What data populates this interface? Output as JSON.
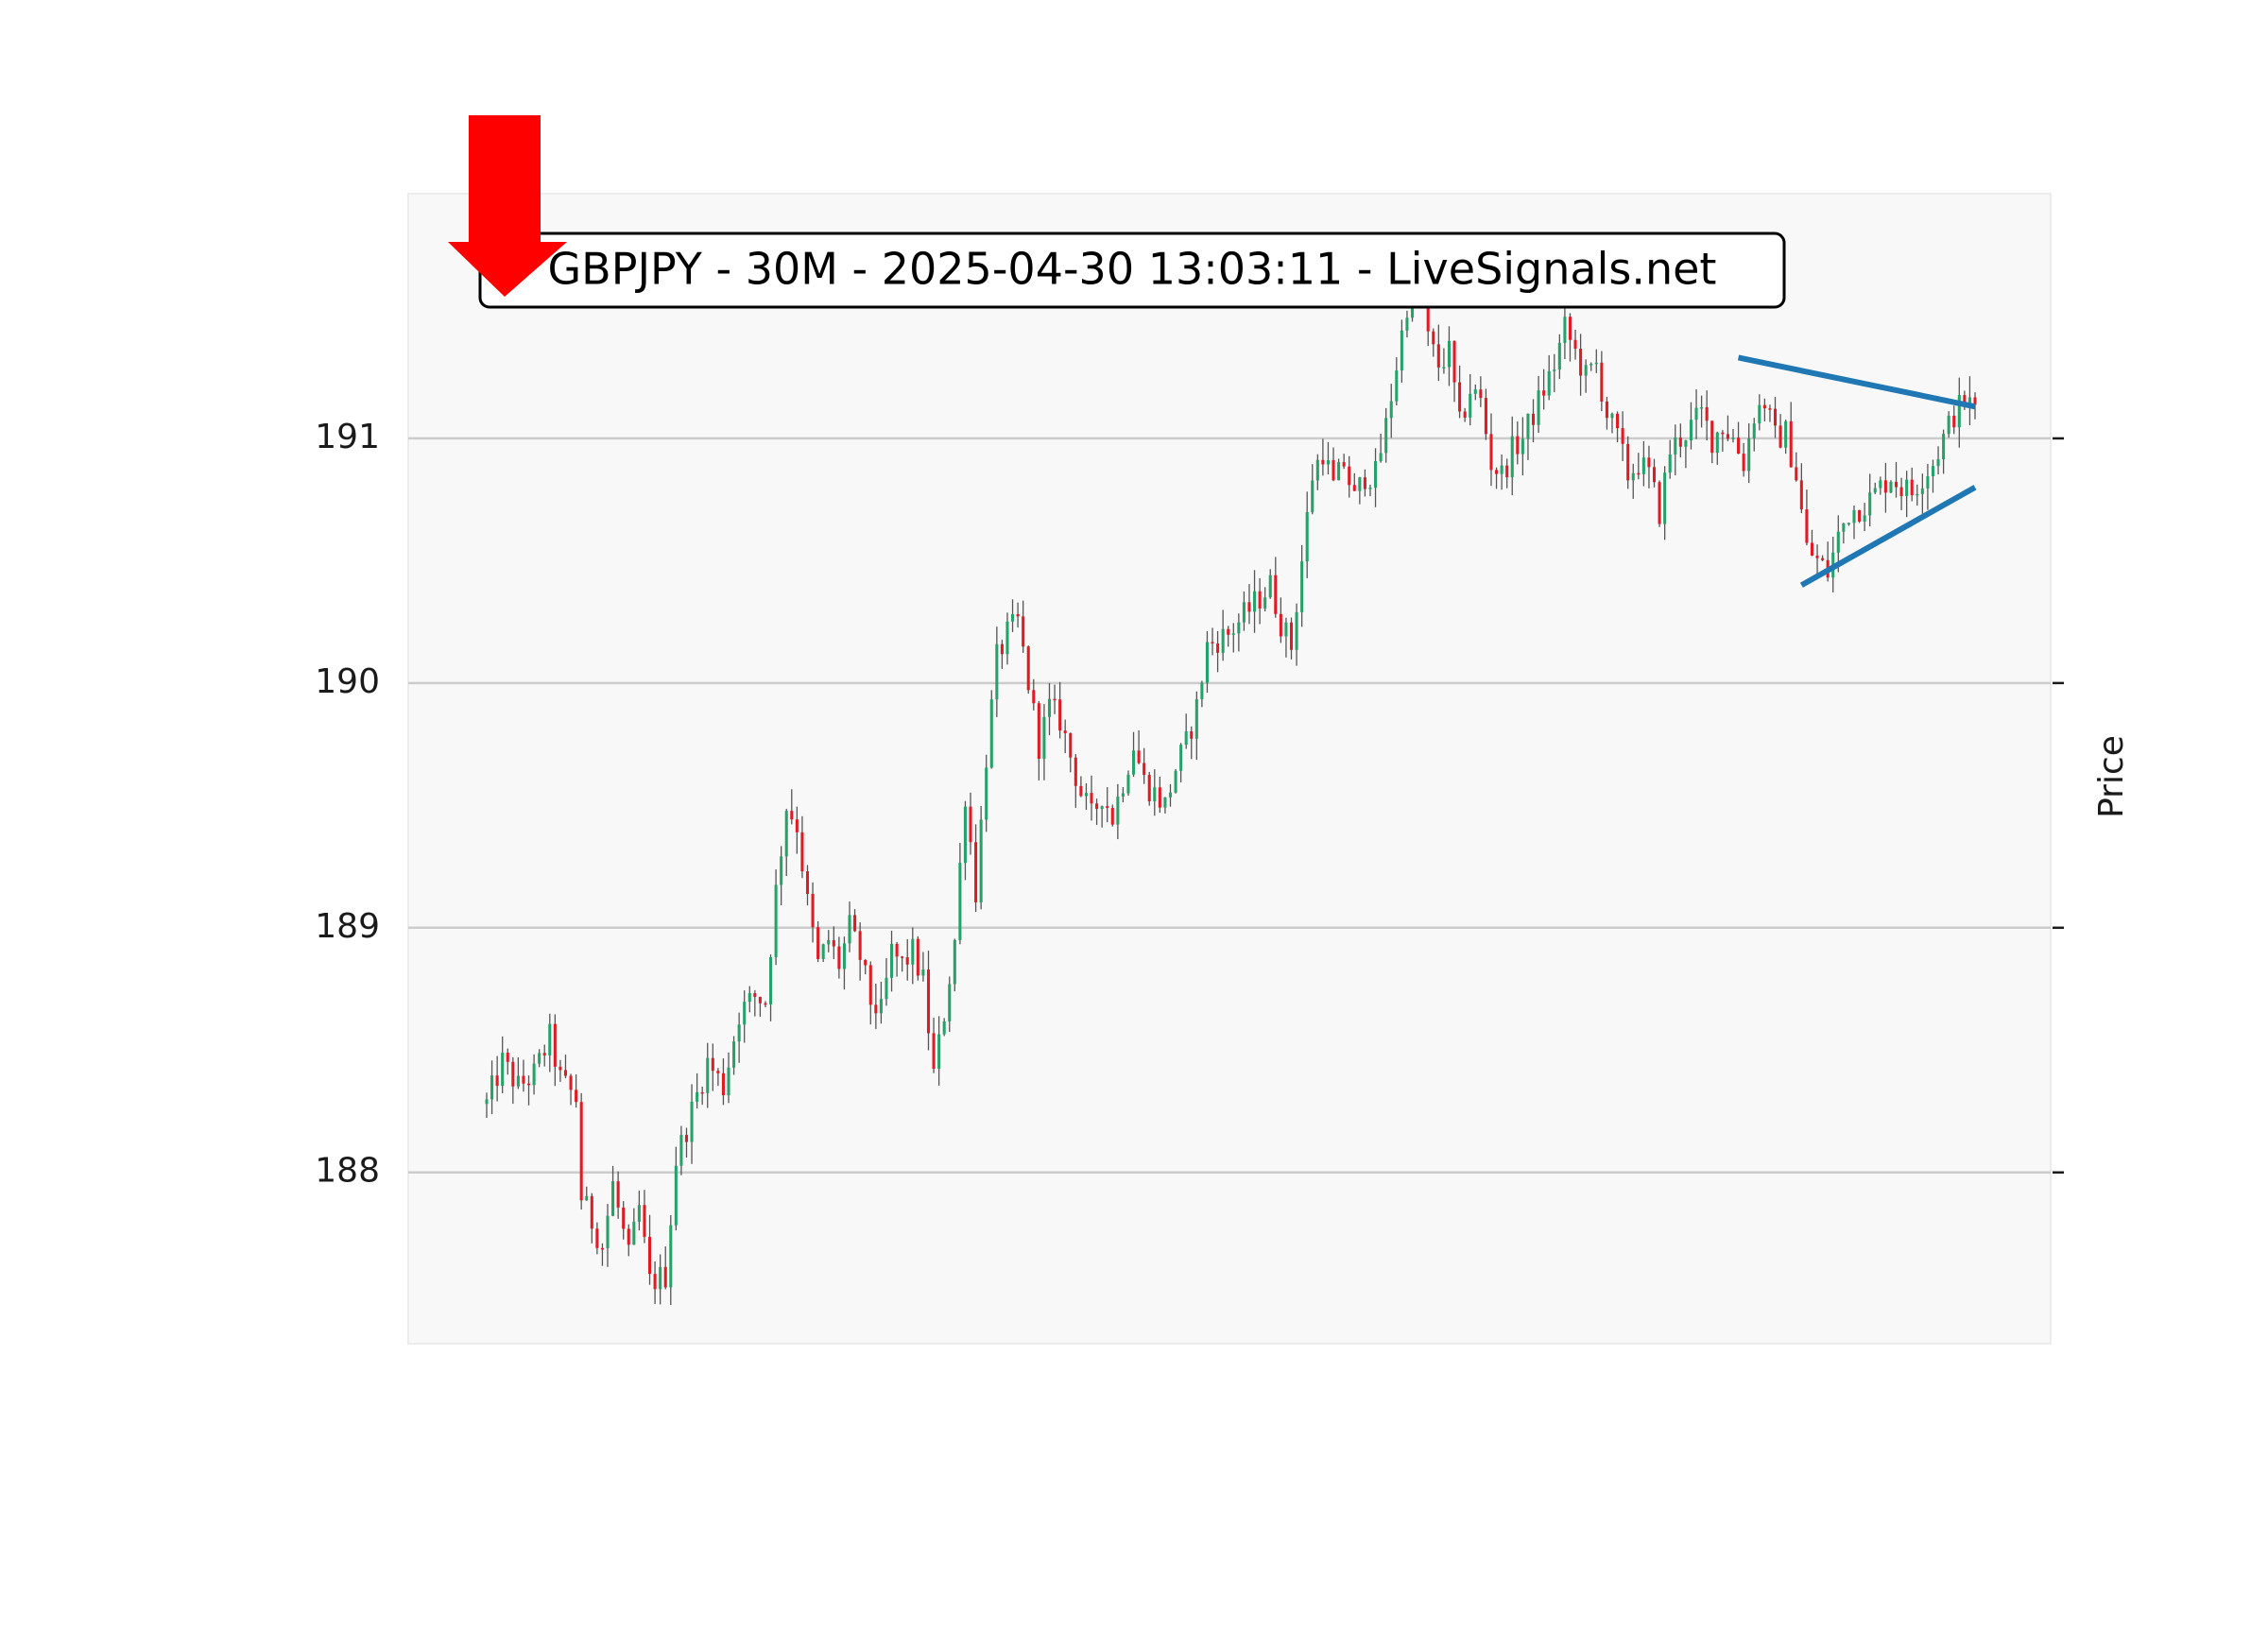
{
  "chart_data": {
    "type": "candlestick",
    "title": "GBPJPY - 30M - 2025-04-30 13:03:11 - LiveSignals.net",
    "ylabel": "Price",
    "xlabel": "",
    "ylim": [
      187.3,
      192.0
    ],
    "yticks": [
      188,
      189,
      190,
      191
    ],
    "grid": "horizontal",
    "signal": "down-arrow",
    "colors": {
      "up": "#26a269",
      "down": "#e01b24",
      "wick": "#555555",
      "trendline": "#1f77b4",
      "arrow": "#ff0000",
      "plot_bg": "#f8f8f8",
      "grid": "#cccccc"
    },
    "anchors": [
      [
        0,
        188.28
      ],
      [
        3,
        188.45
      ],
      [
        6,
        188.35
      ],
      [
        9,
        188.4
      ],
      [
        12,
        188.55
      ],
      [
        14,
        188.38
      ],
      [
        17,
        188.3
      ],
      [
        18,
        187.9
      ],
      [
        22,
        187.7
      ],
      [
        24,
        187.95
      ],
      [
        27,
        187.65
      ],
      [
        29,
        187.85
      ],
      [
        31,
        187.55
      ],
      [
        34,
        187.58
      ],
      [
        36,
        188.05
      ],
      [
        39,
        188.25
      ],
      [
        42,
        188.45
      ],
      [
        45,
        188.35
      ],
      [
        48,
        188.65
      ],
      [
        51,
        188.72
      ],
      [
        53,
        188.7
      ],
      [
        55,
        189.15
      ],
      [
        57,
        189.5
      ],
      [
        59,
        189.42
      ],
      [
        61,
        189.1
      ],
      [
        63,
        188.85
      ],
      [
        65,
        188.95
      ],
      [
        67,
        188.85
      ],
      [
        69,
        189.0
      ],
      [
        71,
        188.88
      ],
      [
        73,
        188.7
      ],
      [
        75,
        188.65
      ],
      [
        77,
        188.9
      ],
      [
        79,
        188.85
      ],
      [
        81,
        188.9
      ],
      [
        83,
        188.78
      ],
      [
        85,
        188.4
      ],
      [
        87,
        188.65
      ],
      [
        89,
        188.95
      ],
      [
        91,
        189.55
      ],
      [
        93,
        189.15
      ],
      [
        95,
        189.7
      ],
      [
        97,
        190.1
      ],
      [
        99,
        190.2
      ],
      [
        101,
        190.25
      ],
      [
        103,
        190.0
      ],
      [
        105,
        189.75
      ],
      [
        107,
        189.9
      ],
      [
        109,
        189.85
      ],
      [
        111,
        189.7
      ],
      [
        113,
        189.55
      ],
      [
        115,
        189.45
      ],
      [
        117,
        189.55
      ],
      [
        119,
        189.45
      ],
      [
        121,
        189.6
      ],
      [
        123,
        189.75
      ],
      [
        125,
        189.6
      ],
      [
        127,
        189.55
      ],
      [
        129,
        189.5
      ],
      [
        131,
        189.65
      ],
      [
        133,
        189.75
      ],
      [
        135,
        189.9
      ],
      [
        137,
        190.15
      ],
      [
        139,
        190.18
      ],
      [
        141,
        190.2
      ],
      [
        143,
        190.25
      ],
      [
        145,
        190.3
      ],
      [
        147,
        190.35
      ],
      [
        149,
        190.4
      ],
      [
        151,
        190.25
      ],
      [
        153,
        190.15
      ],
      [
        155,
        190.5
      ],
      [
        157,
        190.85
      ],
      [
        159,
        190.95
      ],
      [
        161,
        190.8
      ],
      [
        163,
        190.9
      ],
      [
        165,
        190.75
      ],
      [
        167,
        190.85
      ],
      [
        169,
        190.85
      ],
      [
        171,
        191.05
      ],
      [
        173,
        191.3
      ],
      [
        175,
        191.55
      ],
      [
        177,
        191.7
      ],
      [
        179,
        191.4
      ],
      [
        181,
        191.3
      ],
      [
        183,
        191.35
      ],
      [
        185,
        191.05
      ],
      [
        187,
        191.2
      ],
      [
        189,
        191.15
      ],
      [
        191,
        190.9
      ],
      [
        193,
        190.85
      ],
      [
        195,
        190.95
      ],
      [
        197,
        191.0
      ],
      [
        199,
        191.1
      ],
      [
        201,
        191.2
      ],
      [
        203,
        191.3
      ],
      [
        205,
        191.45
      ],
      [
        207,
        191.35
      ],
      [
        209,
        191.25
      ],
      [
        211,
        191.3
      ],
      [
        213,
        191.1
      ],
      [
        215,
        191.0
      ],
      [
        217,
        190.85
      ],
      [
        219,
        190.9
      ],
      [
        221,
        190.85
      ],
      [
        223,
        190.7
      ],
      [
        225,
        190.95
      ],
      [
        227,
        191.0
      ],
      [
        229,
        191.05
      ],
      [
        231,
        191.1
      ],
      [
        233,
        191.0
      ],
      [
        235,
        191.05
      ],
      [
        237,
        191.0
      ],
      [
        239,
        190.9
      ],
      [
        241,
        191.1
      ],
      [
        243,
        191.15
      ],
      [
        245,
        191.0
      ],
      [
        247,
        191.02
      ],
      [
        249,
        190.85
      ],
      [
        251,
        190.55
      ],
      [
        253,
        190.5
      ],
      [
        255,
        190.45
      ],
      [
        257,
        190.6
      ],
      [
        259,
        190.7
      ],
      [
        261,
        190.72
      ],
      [
        263,
        190.75
      ],
      [
        265,
        190.8
      ],
      [
        267,
        190.85
      ],
      [
        269,
        190.8
      ],
      [
        271,
        190.78
      ],
      [
        273,
        190.85
      ],
      [
        275,
        190.9
      ],
      [
        277,
        191.0
      ],
      [
        279,
        191.1
      ],
      [
        281,
        191.15
      ],
      [
        283,
        191.12
      ]
    ],
    "trendlines": [
      {
        "name": "resistance",
        "from": [
          238,
          191.33
        ],
        "to": [
          283,
          191.13
        ]
      },
      {
        "name": "support",
        "from": [
          250,
          190.4
        ],
        "to": [
          283,
          190.8
        ]
      }
    ]
  }
}
